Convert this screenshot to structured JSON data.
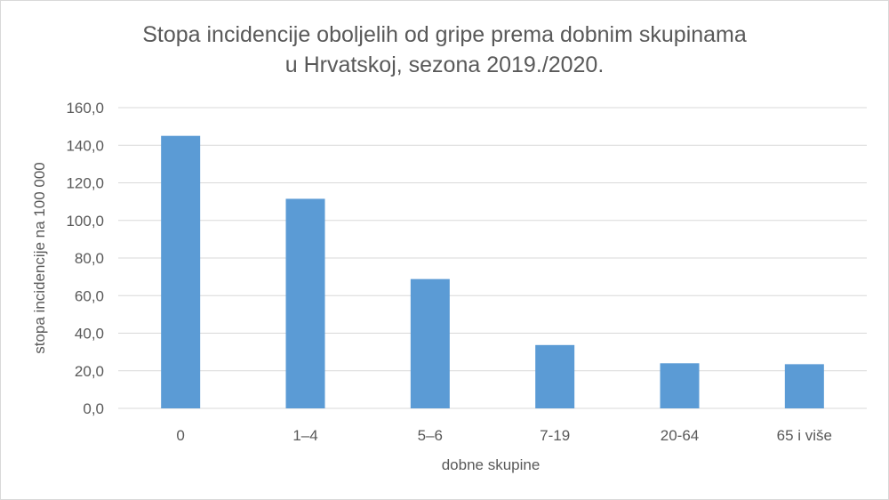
{
  "chart_data": {
    "type": "bar",
    "title_line1": "Stopa incidencije oboljelih od gripe prema dobnim skupinama",
    "title_line2": "u Hrvatskoj, sezona 2019./2020.",
    "xlabel": "dobne skupine",
    "ylabel": "stopa incidencije na 100 000",
    "categories": [
      "0",
      "1–4",
      "5–6",
      "7-19",
      "20-64",
      "65 i više"
    ],
    "values": [
      145.0,
      111.5,
      68.8,
      33.7,
      24.0,
      23.5
    ],
    "ylim": [
      0,
      160
    ],
    "ytick_step": 20,
    "ytick_labels": [
      "0,0",
      "20,0",
      "40,0",
      "60,0",
      "80,0",
      "100,0",
      "120,0",
      "140,0",
      "160,0"
    ],
    "grid": true,
    "legend": "none",
    "colors": {
      "bar": "#5b9bd5",
      "grid": "#d9d9d9",
      "text": "#595959"
    }
  }
}
